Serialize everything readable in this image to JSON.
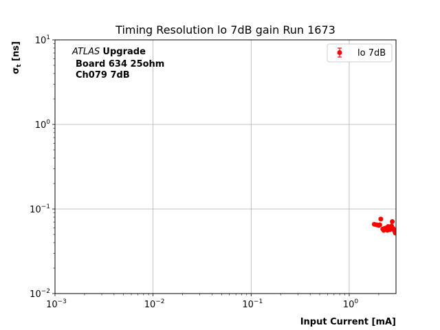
{
  "chart_data": {
    "type": "scatter",
    "title": "Timing Resolution lo 7dB gain Run 1673",
    "xlabel": "Input Current [mA]",
    "ylabel_main": "σ",
    "ylabel_sub": "t",
    "ylabel_unit": " [ns]",
    "xscale": "log",
    "yscale": "log",
    "xlim": [
      0.001,
      3.0
    ],
    "ylim": [
      0.01,
      10
    ],
    "xticks": [
      {
        "value": 0.001,
        "base": "10",
        "exp": "−3"
      },
      {
        "value": 0.01,
        "base": "10",
        "exp": "−2"
      },
      {
        "value": 0.1,
        "base": "10",
        "exp": "−1"
      },
      {
        "value": 1,
        "base": "10",
        "exp": "0"
      }
    ],
    "yticks": [
      {
        "value": 0.01,
        "base": "10",
        "exp": "−2"
      },
      {
        "value": 0.1,
        "base": "10",
        "exp": "−1"
      },
      {
        "value": 1,
        "base": "10",
        "exp": "0"
      },
      {
        "value": 10,
        "base": "10",
        "exp": "1"
      }
    ],
    "grid": true,
    "legend_position": "top-right",
    "annotation": {
      "atlas": "ATLAS",
      "upgrade": "Upgrade",
      "line2": "Board 634 25ohm",
      "line3": "Ch079 7dB"
    },
    "series": [
      {
        "name": "lo 7dB",
        "color": "#ff0000",
        "points": [
          {
            "x": 1.8,
            "y": 0.066
          },
          {
            "x": 1.9,
            "y": 0.065
          },
          {
            "x": 2.0,
            "y": 0.064
          },
          {
            "x": 2.05,
            "y": 0.065
          },
          {
            "x": 2.1,
            "y": 0.076
          },
          {
            "x": 2.2,
            "y": 0.058
          },
          {
            "x": 2.25,
            "y": 0.056
          },
          {
            "x": 2.3,
            "y": 0.059
          },
          {
            "x": 2.35,
            "y": 0.057
          },
          {
            "x": 2.4,
            "y": 0.06
          },
          {
            "x": 2.45,
            "y": 0.056
          },
          {
            "x": 2.5,
            "y": 0.062
          },
          {
            "x": 2.55,
            "y": 0.058
          },
          {
            "x": 2.6,
            "y": 0.057
          },
          {
            "x": 2.65,
            "y": 0.061
          },
          {
            "x": 2.7,
            "y": 0.063
          },
          {
            "x": 2.75,
            "y": 0.071
          },
          {
            "x": 2.8,
            "y": 0.059
          },
          {
            "x": 2.85,
            "y": 0.057
          },
          {
            "x": 2.9,
            "y": 0.055
          },
          {
            "x": 2.95,
            "y": 0.052
          }
        ]
      }
    ]
  }
}
